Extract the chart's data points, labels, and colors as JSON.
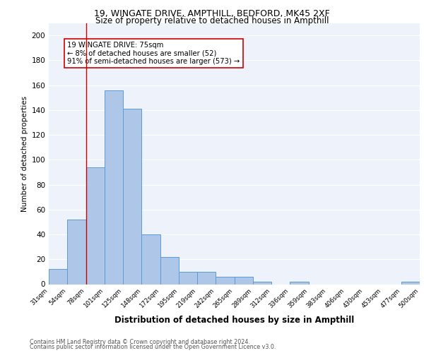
{
  "title1": "19, WINGATE DRIVE, AMPTHILL, BEDFORD, MK45 2XF",
  "title2": "Size of property relative to detached houses in Ampthill",
  "xlabel": "Distribution of detached houses by size in Ampthill",
  "ylabel": "Number of detached properties",
  "bar_values": [
    12,
    52,
    94,
    156,
    141,
    40,
    22,
    10,
    10,
    6,
    6,
    2,
    0,
    2,
    0,
    0,
    0,
    0,
    0,
    2
  ],
  "bin_labels": [
    "31sqm",
    "54sqm",
    "78sqm",
    "101sqm",
    "125sqm",
    "148sqm",
    "172sqm",
    "195sqm",
    "219sqm",
    "242sqm",
    "265sqm",
    "289sqm",
    "312sqm",
    "336sqm",
    "359sqm",
    "383sqm",
    "406sqm",
    "430sqm",
    "453sqm",
    "477sqm",
    "500sqm"
  ],
  "bar_color": "#aec6e8",
  "bar_edge_color": "#5b9bd5",
  "bg_color": "#eef3fb",
  "grid_color": "#ffffff",
  "vline_x": 1.5,
  "vline_color": "#cc0000",
  "annotation_text": "19 WINGATE DRIVE: 75sqm\n← 8% of detached houses are smaller (52)\n91% of semi-detached houses are larger (573) →",
  "annotation_box_color": "#ffffff",
  "annotation_box_edge": "#cc0000",
  "footnote1": "Contains HM Land Registry data © Crown copyright and database right 2024.",
  "footnote2": "Contains public sector information licensed under the Open Government Licence v3.0.",
  "ylim": [
    0,
    210
  ],
  "yticks": [
    0,
    20,
    40,
    60,
    80,
    100,
    120,
    140,
    160,
    180,
    200
  ]
}
